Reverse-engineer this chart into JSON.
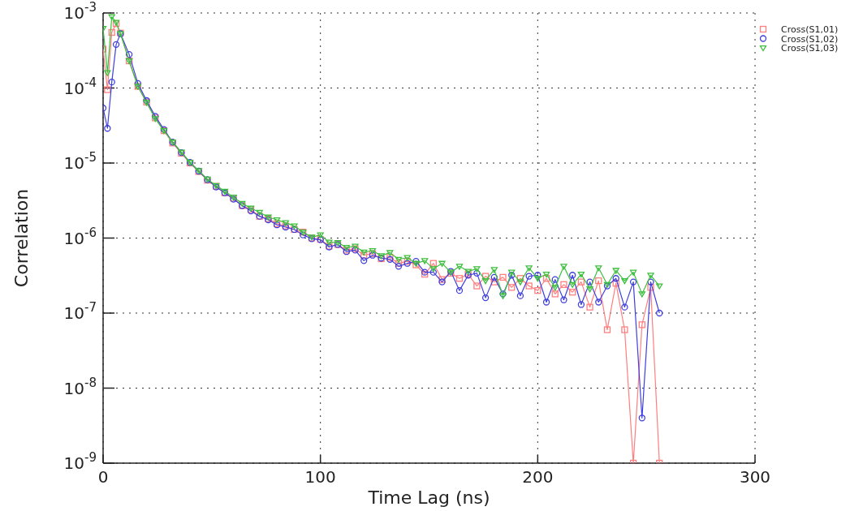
{
  "chart_data": {
    "type": "line",
    "xlabel": "Time Lag (ns)",
    "ylabel": "Correlation",
    "log": "y",
    "grid": true,
    "legend": "top right",
    "xlim": [
      0,
      300
    ],
    "xticks": [
      0,
      100,
      200,
      300
    ],
    "ylim": [
      1e-09,
      0.001
    ],
    "yticks": [
      {
        "value": 0.001,
        "label": "10$^{-3}$"
      },
      {
        "value": 0.0001,
        "label": "10$^{-4}$"
      },
      {
        "value": 1e-05,
        "label": "10$^{-5}$"
      },
      {
        "value": 1e-06,
        "label": "10$^{-6}$"
      },
      {
        "value": 1e-07,
        "label": "10$^{-7}$"
      },
      {
        "value": 1e-08,
        "label": "10$^{-8}$"
      },
      {
        "value": 1e-09,
        "label": "10$^{-9}$"
      }
    ],
    "x": [
      0,
      2,
      4,
      6,
      8,
      12,
      16,
      20,
      24,
      28,
      32,
      36,
      40,
      44,
      48,
      52,
      56,
      60,
      64,
      68,
      72,
      76,
      80,
      84,
      88,
      92,
      96,
      100,
      104,
      108,
      112,
      116,
      120,
      124,
      128,
      132,
      136,
      140,
      144,
      148,
      152,
      156,
      160,
      164,
      168,
      172,
      176,
      180,
      184,
      188,
      192,
      196,
      200,
      204,
      208,
      212,
      216,
      220,
      224,
      228,
      232,
      236,
      240,
      244,
      248,
      252,
      256
    ],
    "series": [
      {
        "name": "Cross(S1,01)",
        "color": "#ff7f7f",
        "marker": "square",
        "values": [
          0.00033,
          9.5e-05,
          0.00055,
          0.00072,
          0.00054,
          0.00023,
          0.000105,
          6.5e-05,
          4e-05,
          2.7e-05,
          1.85e-05,
          1.35e-05,
          1e-05,
          7.7e-06,
          5.9e-06,
          4.9e-06,
          4e-06,
          3.4e-06,
          2.7e-06,
          2.4e-06,
          1.95e-06,
          1.8e-06,
          1.55e-06,
          1.45e-06,
          1.3e-06,
          1.2e-06,
          1e-06,
          9.6e-07,
          7.8e-07,
          8.2e-07,
          6.9e-07,
          7.2e-07,
          5.9e-07,
          6.2e-07,
          5.3e-07,
          5.5e-07,
          4.6e-07,
          4.9e-07,
          4.4e-07,
          3.3e-07,
          4.6e-07,
          2.8e-07,
          3.4e-07,
          2.9e-07,
          3.3e-07,
          2.3e-07,
          3.1e-07,
          2.6e-07,
          3e-07,
          2.2e-07,
          2.9e-07,
          2.3e-07,
          2e-07,
          2.9e-07,
          1.8e-07,
          2.4e-07,
          1.9e-07,
          2.6e-07,
          1.2e-07,
          2.7e-07,
          6e-08,
          2.5e-07,
          6e-08,
          1e-09,
          7e-08,
          2.2e-07,
          1e-09
        ]
      },
      {
        "name": "Cross(S1,02)",
        "color": "#3f3fdf",
        "marker": "circle",
        "values": [
          5.4e-05,
          2.9e-05,
          0.00012,
          0.00038,
          0.00053,
          0.00028,
          0.000115,
          6.8e-05,
          4.2e-05,
          2.8e-05,
          1.9e-05,
          1.38e-05,
          1.02e-05,
          7.8e-06,
          6e-06,
          4.8e-06,
          4e-06,
          3.3e-06,
          2.7e-06,
          2.3e-06,
          1.95e-06,
          1.75e-06,
          1.5e-06,
          1.4e-06,
          1.3e-06,
          1.1e-06,
          9.8e-07,
          9.5e-07,
          7.6e-07,
          8.2e-07,
          6.6e-07,
          6.9e-07,
          5e-07,
          5.9e-07,
          5.4e-07,
          5.2e-07,
          4.2e-07,
          4.6e-07,
          4.9e-07,
          3.5e-07,
          3.5e-07,
          2.6e-07,
          3.6e-07,
          2e-07,
          3.2e-07,
          3.4e-07,
          1.6e-07,
          3e-07,
          1.8e-07,
          3.2e-07,
          1.7e-07,
          3.1e-07,
          3.2e-07,
          1.4e-07,
          2.8e-07,
          1.5e-07,
          3.2e-07,
          1.3e-07,
          2.6e-07,
          1.4e-07,
          2.3e-07,
          2.9e-07,
          1.2e-07,
          2.6e-07,
          4e-09,
          2.6e-07,
          1e-07
        ]
      },
      {
        "name": "Cross(S1,03)",
        "color": "#3fbf3f",
        "marker": "triangle",
        "values": [
          0.00062,
          0.00016,
          0.00089,
          0.00075,
          0.00053,
          0.00023,
          0.000105,
          6.4e-05,
          3.9e-05,
          2.7e-05,
          1.9e-05,
          1.4e-05,
          1.02e-05,
          7.9e-06,
          6.1e-06,
          5e-06,
          4.2e-06,
          3.5e-06,
          2.9e-06,
          2.5e-06,
          2.2e-06,
          1.9e-06,
          1.75e-06,
          1.6e-06,
          1.45e-06,
          1.2e-06,
          1.03e-06,
          1.1e-06,
          8.8e-07,
          8.7e-07,
          7.5e-07,
          7.8e-07,
          6.5e-07,
          6.8e-07,
          5.8e-07,
          6.4e-07,
          5.2e-07,
          5.5e-07,
          4.6e-07,
          5e-07,
          3.9e-07,
          4.6e-07,
          3.5e-07,
          4.2e-07,
          3.6e-07,
          3.9e-07,
          2.7e-07,
          3.8e-07,
          1.7e-07,
          3.5e-07,
          2.6e-07,
          4e-07,
          2.9e-07,
          3.3e-07,
          2.2e-07,
          4.2e-07,
          2.4e-07,
          3.3e-07,
          2.1e-07,
          4e-07,
          2.4e-07,
          3.7e-07,
          2.7e-07,
          3.5e-07,
          1.8e-07,
          3.2e-07,
          2.3e-07
        ]
      }
    ]
  }
}
